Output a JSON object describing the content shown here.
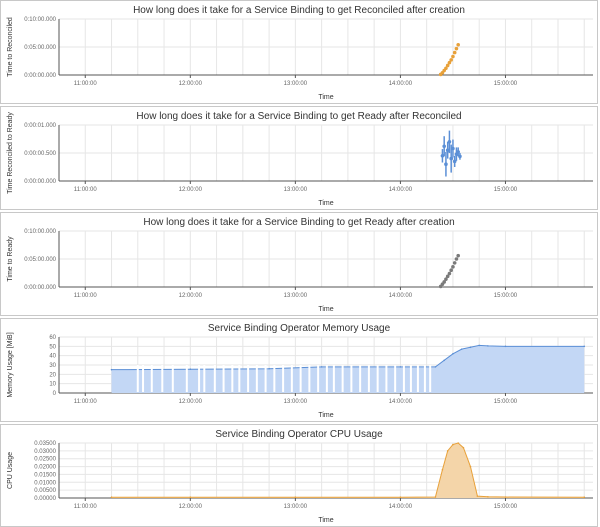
{
  "chart_data": [
    {
      "type": "scatter",
      "title": "How long does it take for a Service Binding to get Reconciled after creation",
      "xlabel": "Time",
      "ylabel": "Time to Reconciled",
      "x_ticks": [
        "11:00:00",
        "12:00:00",
        "13:00:00",
        "14:00:00",
        "15:00:00"
      ],
      "y_ticks": [
        "0:00:00.000",
        "0:05:00.000",
        "0:10:00.000"
      ],
      "xlim": [
        "10:45:00",
        "15:50:00"
      ],
      "ylim": [
        0,
        10
      ],
      "y_unit": "minutes",
      "color": "#e8a13a",
      "series": [
        {
          "x": [
            "14:23:00",
            "14:24:00",
            "14:25:00",
            "14:26:00",
            "14:27:00",
            "14:28:00",
            "14:29:00",
            "14:30:00",
            "14:31:00",
            "14:32:00",
            "14:33:00"
          ],
          "y": [
            0.1,
            0.4,
            0.8,
            1.2,
            1.7,
            2.2,
            2.7,
            3.3,
            4.0,
            4.7,
            5.4
          ]
        }
      ]
    },
    {
      "type": "scatter",
      "title": "How long does it take for a Service Binding to get Ready after Reconciled",
      "xlabel": "Time",
      "ylabel": "Time Reconciled to Ready",
      "x_ticks": [
        "11:00:00",
        "12:00:00",
        "13:00:00",
        "14:00:00",
        "15:00:00"
      ],
      "y_ticks": [
        "0:00:00.000",
        "0:00:00.500",
        "0:00:01.000"
      ],
      "xlim": [
        "10:45:00",
        "15:50:00"
      ],
      "ylim": [
        0,
        1
      ],
      "y_unit": "seconds",
      "color": "#5b8fd6",
      "series": [
        {
          "x": [
            "14:24:00",
            "14:25:00",
            "14:26:00",
            "14:27:00",
            "14:28:00",
            "14:29:00",
            "14:30:00",
            "14:31:00",
            "14:32:00",
            "14:33:00",
            "14:34:00"
          ],
          "y": [
            0.45,
            0.62,
            0.3,
            0.55,
            0.7,
            0.4,
            0.58,
            0.35,
            0.48,
            0.52,
            0.44
          ],
          "spread": [
            0.12,
            0.18,
            0.22,
            0.15,
            0.2,
            0.25,
            0.16,
            0.1,
            0.12,
            0.08,
            0.06
          ]
        }
      ]
    },
    {
      "type": "scatter",
      "title": "How long does it take for a Service Binding to get Ready after creation",
      "xlabel": "Time",
      "ylabel": "Time to Ready",
      "x_ticks": [
        "11:00:00",
        "12:00:00",
        "13:00:00",
        "14:00:00",
        "15:00:00"
      ],
      "y_ticks": [
        "0:00:00.000",
        "0:05:00.000",
        "0:10:00.000"
      ],
      "xlim": [
        "10:45:00",
        "15:50:00"
      ],
      "ylim": [
        0,
        10
      ],
      "y_unit": "minutes",
      "color": "#7a7a7a",
      "series": [
        {
          "x": [
            "14:23:00",
            "14:24:00",
            "14:25:00",
            "14:26:00",
            "14:27:00",
            "14:28:00",
            "14:29:00",
            "14:30:00",
            "14:31:00",
            "14:32:00",
            "14:33:00"
          ],
          "y": [
            0.1,
            0.5,
            0.9,
            1.4,
            1.9,
            2.4,
            3.0,
            3.6,
            4.3,
            5.0,
            5.6
          ]
        }
      ]
    },
    {
      "type": "area",
      "title": "Service Binding Operator Memory Usage",
      "xlabel": "Time",
      "ylabel": "Memory Usage [MiB]",
      "x_ticks": [
        "11:00:00",
        "12:00:00",
        "13:00:00",
        "14:00:00",
        "15:00:00"
      ],
      "y_ticks": [
        "0",
        "10",
        "20",
        "30",
        "40",
        "50",
        "60"
      ],
      "xlim": [
        "10:45:00",
        "15:50:00"
      ],
      "ylim": [
        0,
        60
      ],
      "color": "#5b8fd6",
      "fill": "#c3d7f5",
      "series": [
        {
          "x": [
            "11:15:00",
            "12:00:00",
            "12:45:00",
            "13:15:00",
            "14:00:00",
            "14:20:00",
            "14:25:00",
            "14:30:00",
            "14:35:00",
            "14:40:00",
            "14:45:00",
            "14:50:00",
            "15:00:00",
            "15:45:00"
          ],
          "y": [
            25,
            25.5,
            26,
            28,
            28,
            28,
            35,
            42,
            47,
            49,
            51,
            50.5,
            50,
            50
          ]
        }
      ],
      "gaps": [
        "11:30:00",
        "11:33:00",
        "11:38:00",
        "11:44:00",
        "11:50:00",
        "11:58:00",
        "12:05:00",
        "12:08:00",
        "12:14:00",
        "12:19:00",
        "12:24:00",
        "12:28:00",
        "12:33:00",
        "12:38:00",
        "12:43:00",
        "12:48:00",
        "12:53:00",
        "12:58:00",
        "13:03:00",
        "13:08:00",
        "13:13:00",
        "13:18:00",
        "13:22:00",
        "13:27:00",
        "13:32:00",
        "13:37:00",
        "13:42:00",
        "13:47:00",
        "13:52:00",
        "13:57:00",
        "14:02:00",
        "14:06:00",
        "14:10:00",
        "14:14:00",
        "14:17:00"
      ]
    },
    {
      "type": "area",
      "title": "Service Binding Operator CPU Usage",
      "xlabel": "Time",
      "ylabel": "CPU Usage",
      "x_ticks": [
        "11:00:00",
        "12:00:00",
        "13:00:00",
        "14:00:00",
        "15:00:00"
      ],
      "y_ticks": [
        "0.00000",
        "0.00500",
        "0.01000",
        "0.01500",
        "0.02000",
        "0.02500",
        "0.03000",
        "0.03500"
      ],
      "xlim": [
        "10:45:00",
        "15:50:00"
      ],
      "ylim": [
        0,
        0.035
      ],
      "color": "#e8a13a",
      "fill": "#f4d5a9",
      "series": [
        {
          "x": [
            "11:15:00",
            "12:00:00",
            "13:00:00",
            "14:00:00",
            "14:20:00",
            "14:24:00",
            "14:27:00",
            "14:30:00",
            "14:33:00",
            "14:36:00",
            "14:40:00",
            "14:44:00",
            "14:50:00",
            "15:00:00",
            "15:45:00"
          ],
          "y": [
            0.0005,
            0.0005,
            0.0005,
            0.0005,
            0.0006,
            0.018,
            0.03,
            0.034,
            0.035,
            0.032,
            0.02,
            0.0012,
            0.0008,
            0.0006,
            0.0005
          ]
        }
      ]
    }
  ]
}
